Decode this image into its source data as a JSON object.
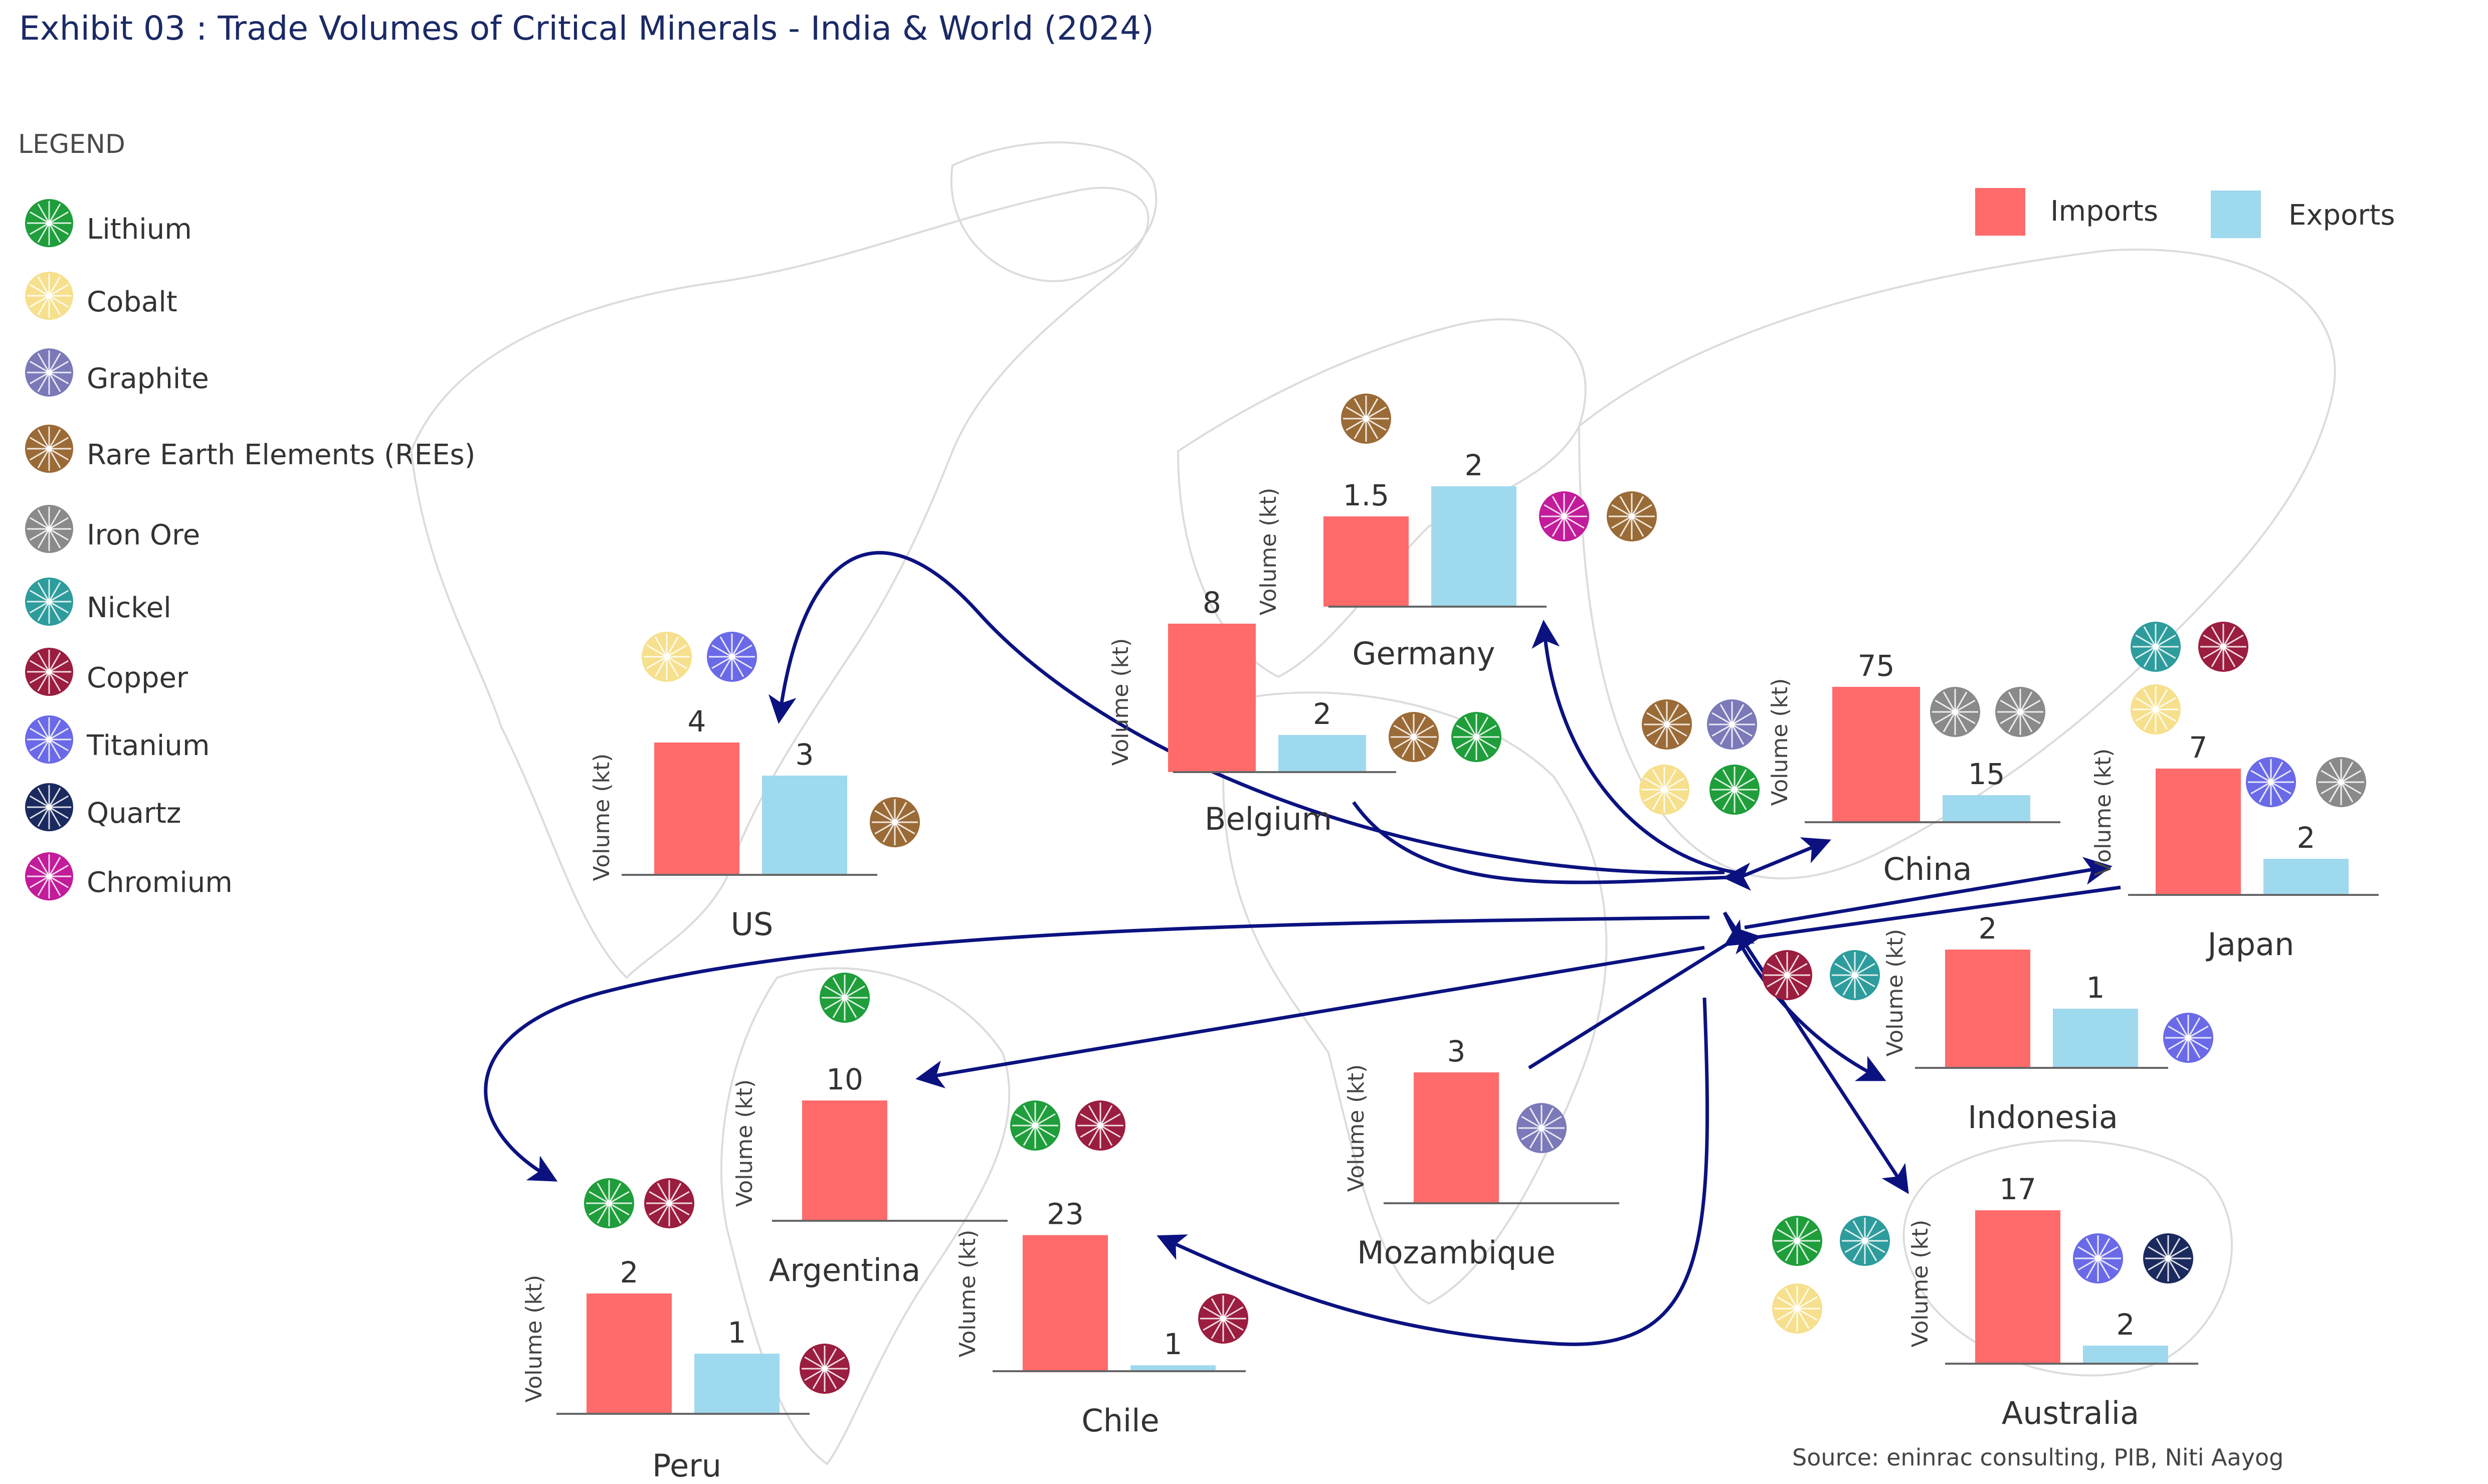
{
  "title": "Exhibit 03 : Trade Volumes of Critical Minerals - India & World (2024)",
  "legend": {
    "heading": "LEGEND",
    "minerals": [
      {
        "key": "lithium",
        "label": "Lithium",
        "color": "#1f9e3b"
      },
      {
        "key": "cobalt",
        "label": "Cobalt",
        "color": "#f6e08d"
      },
      {
        "key": "graphite",
        "label": "Graphite",
        "color": "#7c79b9"
      },
      {
        "key": "ree",
        "label": "Rare Earth Elements (REEs)",
        "color": "#9b6b37"
      },
      {
        "key": "iron",
        "label": "Iron Ore",
        "color": "#8a8a8a"
      },
      {
        "key": "nickel",
        "label": "Nickel",
        "color": "#2e9c9c"
      },
      {
        "key": "copper",
        "label": "Copper",
        "color": "#9b1d3f"
      },
      {
        "key": "titanium",
        "label": "Titanium",
        "color": "#6a6ae8"
      },
      {
        "key": "quartz",
        "label": "Quartz",
        "color": "#1b2a5e"
      },
      {
        "key": "chromium",
        "label": "Chromium",
        "color": "#c21c9a"
      }
    ]
  },
  "series_legend": {
    "imports": "Imports",
    "exports": "Exports"
  },
  "colors": {
    "imports": "#ff6b6b",
    "exports": "#9fd9ee",
    "arrow": "#0b1280",
    "axis": "#666666",
    "map": "#dcdcdc"
  },
  "chart_data": {
    "type": "bar",
    "ylabel": "Volume (kt)",
    "series": [
      {
        "name": "Imports"
      },
      {
        "name": "Exports"
      }
    ],
    "countries": [
      {
        "name": "Germany",
        "imports": 1.5,
        "exports": 2,
        "minerals": [
          "ree",
          "chromium",
          "ree"
        ]
      },
      {
        "name": "Belgium",
        "imports": 8,
        "exports": 2,
        "minerals": [
          "ree",
          "lithium"
        ]
      },
      {
        "name": "US",
        "imports": 4,
        "exports": 3,
        "minerals": [
          "cobalt",
          "titanium",
          "ree"
        ]
      },
      {
        "name": "China",
        "imports": 75,
        "exports": 15,
        "minerals": [
          "ree",
          "graphite",
          "cobalt",
          "lithium",
          "iron",
          "iron"
        ]
      },
      {
        "name": "Japan",
        "imports": 7,
        "exports": 2,
        "minerals": [
          "nickel",
          "copper",
          "cobalt",
          "titanium",
          "iron"
        ]
      },
      {
        "name": "Indonesia",
        "imports": 2,
        "exports": 1,
        "minerals": [
          "copper",
          "nickel",
          "titanium"
        ]
      },
      {
        "name": "Argentina",
        "imports": 10,
        "exports": null,
        "minerals": [
          "lithium"
        ]
      },
      {
        "name": "Mozambique",
        "imports": 3,
        "exports": null,
        "minerals": [
          "graphite"
        ]
      },
      {
        "name": "Chile",
        "imports": 23,
        "exports": 1,
        "minerals": [
          "lithium",
          "copper",
          "copper"
        ]
      },
      {
        "name": "Peru",
        "imports": 2,
        "exports": 1,
        "minerals": [
          "lithium",
          "copper",
          "copper"
        ]
      },
      {
        "name": "Australia",
        "imports": 17,
        "exports": 2,
        "minerals": [
          "lithium",
          "nickel",
          "cobalt",
          "titanium",
          "quartz"
        ]
      }
    ]
  },
  "source": "Source: eninrac consulting, PIB, Niti Aayog"
}
